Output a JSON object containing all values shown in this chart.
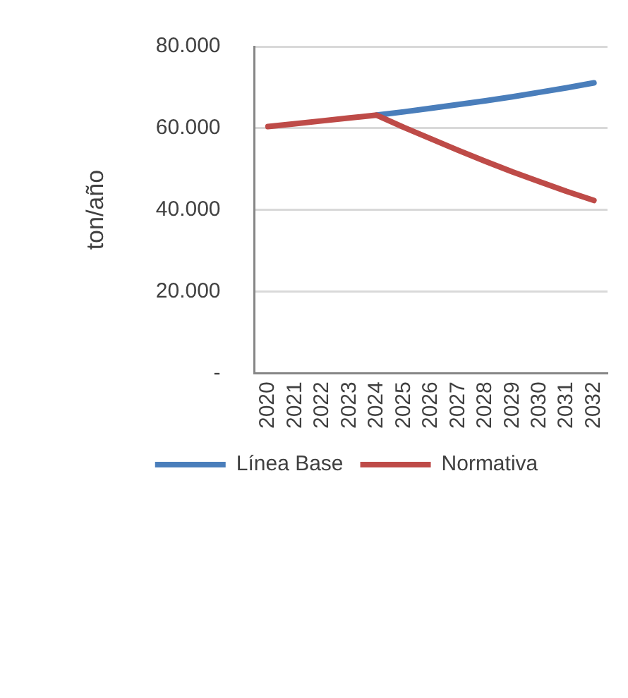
{
  "chart_data": {
    "type": "line",
    "ylabel": "ton/año",
    "categories": [
      "2020",
      "2021",
      "2022",
      "2023",
      "2024",
      "2025",
      "2026",
      "2027",
      "2028",
      "2029",
      "2030",
      "2031",
      "2032"
    ],
    "series": [
      {
        "name": "Línea Base",
        "color": "#4a7ebb",
        "values": [
          null,
          null,
          null,
          null,
          63200,
          64000,
          64900,
          65800,
          66700,
          67700,
          68800,
          69900,
          71100
        ]
      },
      {
        "name": "Normativa",
        "color": "#be4b48",
        "values": [
          60400,
          61100,
          61800,
          62500,
          63200,
          60200,
          57400,
          54600,
          51900,
          49300,
          46900,
          44500,
          42300
        ]
      }
    ],
    "ylim": [
      0,
      80000
    ],
    "yticks": [
      {
        "value": 0,
        "label": "-"
      },
      {
        "value": 20000,
        "label": "20.000"
      },
      {
        "value": 40000,
        "label": "40.000"
      },
      {
        "value": 60000,
        "label": "60.000"
      },
      {
        "value": 80000,
        "label": "80.000"
      }
    ],
    "grid": "y",
    "legend": "bottom",
    "marker": "none",
    "line_style": "solid"
  }
}
